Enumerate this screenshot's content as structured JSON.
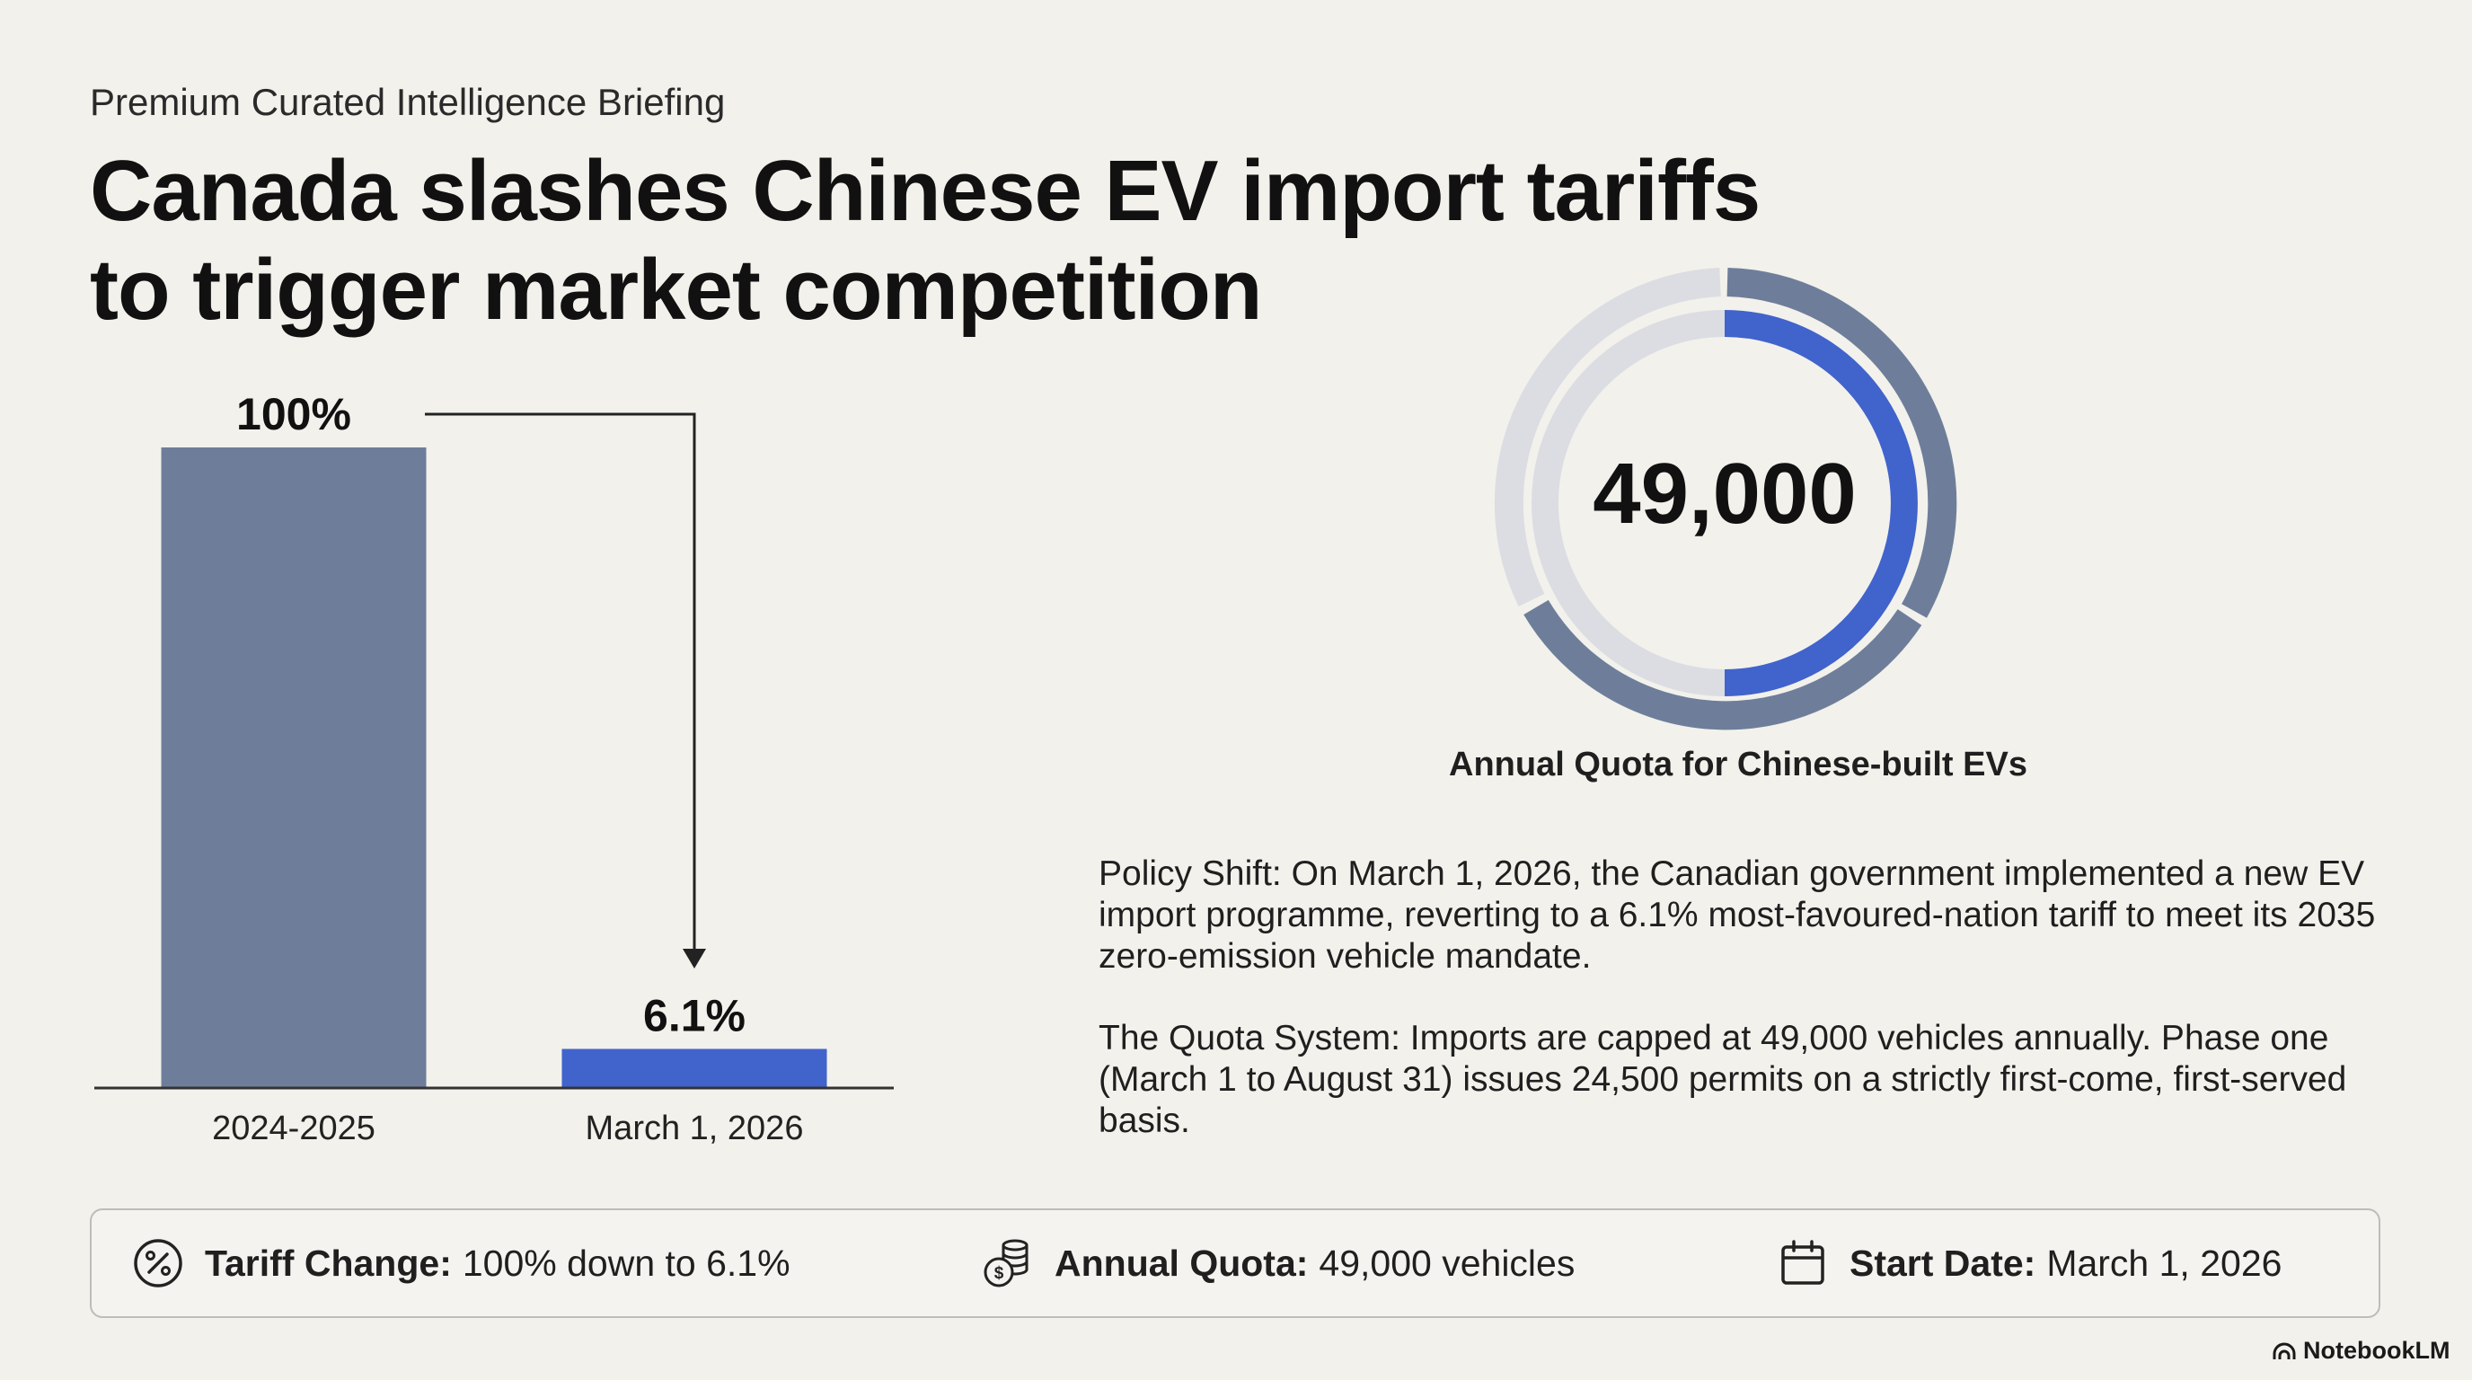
{
  "kicker": "Premium Curated Intelligence Briefing",
  "headline": {
    "line1": "Canada slashes Chinese EV import tariffs",
    "line2": "to trigger market competition"
  },
  "chart_data": [
    {
      "type": "bar",
      "categories": [
        "2024-2025",
        "March 1, 2026"
      ],
      "values": [
        100,
        6.1
      ],
      "value_labels": [
        "100%",
        "6.1%"
      ],
      "ylim": [
        0,
        100
      ],
      "colors": [
        "#6e7e9a",
        "#4163cc"
      ],
      "annotation": "arrow from first bar to second bar"
    },
    {
      "type": "pie",
      "center_label": "49,000",
      "caption": "Annual Quota for Chinese-built EVs",
      "total": 49000,
      "segments": [
        {
          "value": 24500,
          "color": "#4163cc"
        },
        {
          "value": 24500,
          "color": "#dcdde2"
        }
      ]
    }
  ],
  "paragraphs": {
    "policy": "Policy Shift: On March 1, 2026, the Canadian government implemented a new EV import programme, reverting to a 6.1% most-favoured-nation tariff to meet its 2035 zero-emission vehicle mandate.",
    "quota": "The Quota System: Imports are capped at 49,000 vehicles annually. Phase one (March 1 to August 31) issues 24,500 permits on a strictly first-come, first-served basis."
  },
  "stats": [
    {
      "icon": "percent-icon",
      "label": "Tariff Change:",
      "value": "100% down to 6.1%"
    },
    {
      "icon": "coin-stack-icon",
      "label": "Annual Quota:",
      "value": "49,000 vehicles"
    },
    {
      "icon": "calendar-icon",
      "label": "Start Date:",
      "value": "March 1, 2026"
    }
  ],
  "brand": "NotebookLM",
  "colors": {
    "background": "#f2f1ec",
    "bar_gray": "#6e7e9a",
    "accent_blue": "#4163cc",
    "ring_light": "#dcdde2"
  }
}
